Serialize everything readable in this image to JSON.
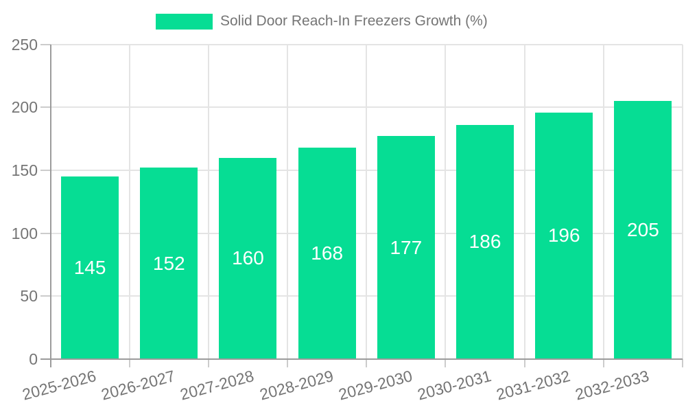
{
  "legend": {
    "label": "Solid Door Reach-In Freezers Growth (%)",
    "swatch_color": "#06dd94"
  },
  "chart_data": {
    "type": "bar",
    "title": "Solid Door Reach-In Freezers Growth (%)",
    "categories": [
      "2025-2026",
      "2026-2027",
      "2027-2028",
      "2028-2029",
      "2029-2030",
      "2030-2031",
      "2031-2032",
      "2032-2033"
    ],
    "values": [
      145,
      152,
      160,
      168,
      177,
      186,
      196,
      205
    ],
    "xlabel": "",
    "ylabel": "",
    "ylim": [
      0,
      250
    ],
    "yticks": [
      0,
      50,
      100,
      150,
      200,
      250
    ],
    "grid": true,
    "legend_position": "top",
    "value_labels_position": "inside-center",
    "x_label_rotation_deg": -15
  },
  "colors": {
    "bar": "#06dd94",
    "axis_line": "#9b9b9b",
    "gridline": "#e4e4e4",
    "tick": "#cccccc",
    "axis_text": "#757575",
    "value_label_text": "#ffffff",
    "background": "#ffffff"
  }
}
